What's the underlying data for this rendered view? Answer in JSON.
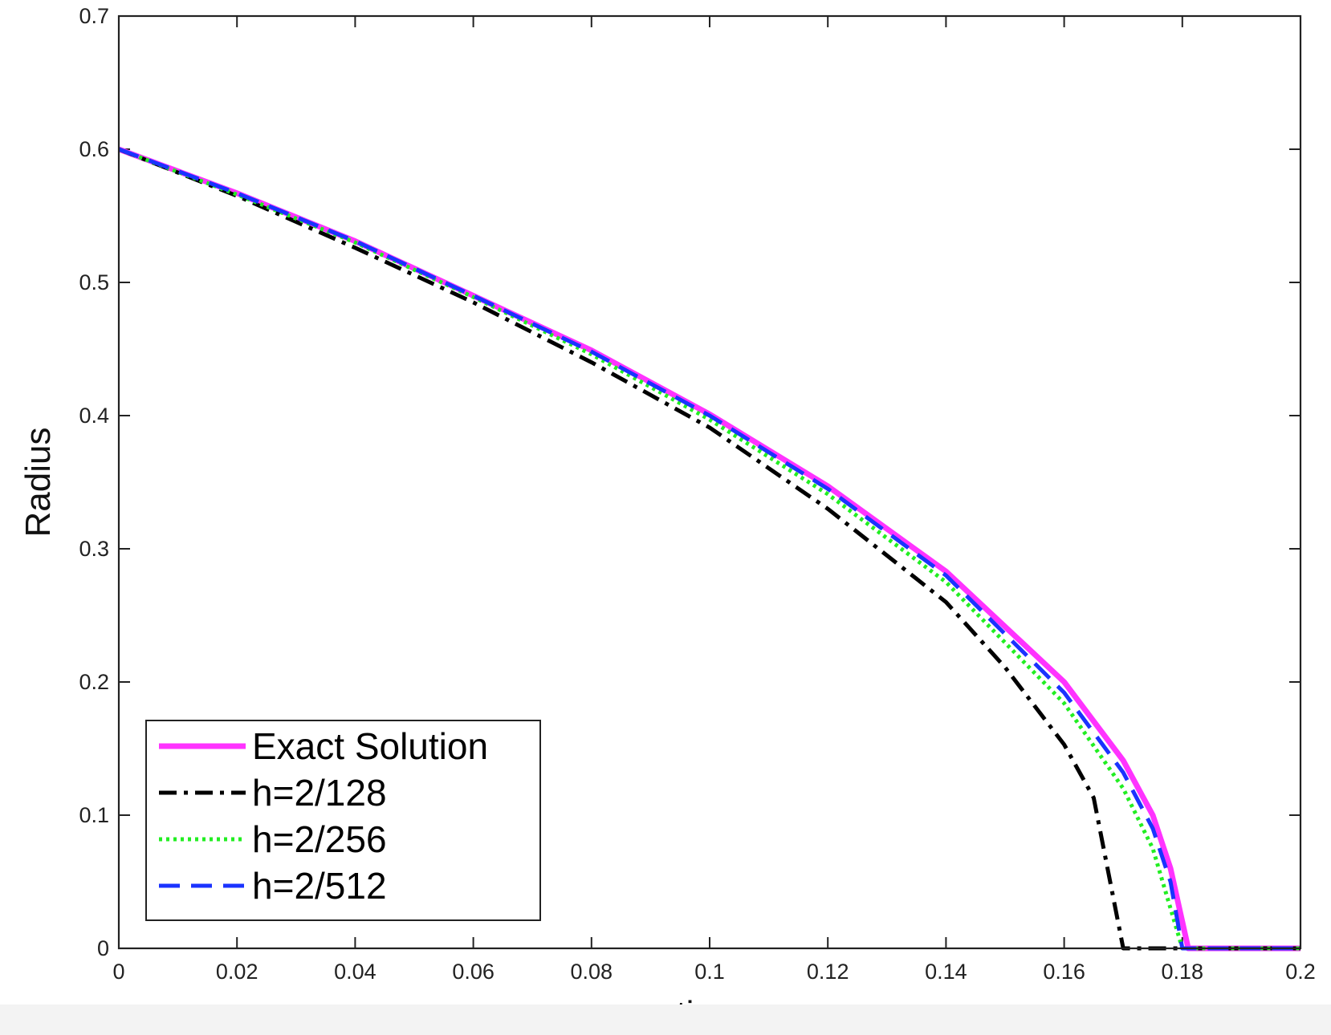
{
  "chart_data": {
    "type": "line",
    "xlabel": "time",
    "ylabel": "Radius",
    "xlim": [
      0,
      0.2
    ],
    "ylim": [
      0,
      0.7
    ],
    "xticks": [
      0,
      0.02,
      0.04,
      0.06,
      0.08,
      0.1,
      0.12,
      0.14,
      0.16,
      0.18,
      0.2
    ],
    "xtick_labels": [
      "0",
      "0.02",
      "0.04",
      "0.06",
      "0.08",
      "0.1",
      "0.12",
      "0.14",
      "0.16",
      "0.18",
      "0.2"
    ],
    "yticks": [
      0,
      0.1,
      0.2,
      0.3,
      0.4,
      0.5,
      0.6,
      0.7
    ],
    "ytick_labels": [
      "0",
      "0.1",
      "0.2",
      "0.3",
      "0.4",
      "0.5",
      "0.6",
      "0.7"
    ],
    "grid": false,
    "legend_position": "bottom-left",
    "series": [
      {
        "name": "Exact Solution",
        "color": "#ff33ff",
        "style": "solid",
        "x": [
          0,
          0.02,
          0.04,
          0.06,
          0.08,
          0.1,
          0.12,
          0.14,
          0.16,
          0.17,
          0.175,
          0.178,
          0.18,
          0.181,
          0.19,
          0.2
        ],
        "y": [
          0.6,
          0.567,
          0.531,
          0.49,
          0.449,
          0.401,
          0.347,
          0.283,
          0.2,
          0.141,
          0.1,
          0.06,
          0.02,
          0,
          0,
          0
        ]
      },
      {
        "name": "h=2/128",
        "color": "#000000",
        "style": "dashdot",
        "x": [
          0,
          0.02,
          0.04,
          0.06,
          0.08,
          0.1,
          0.12,
          0.14,
          0.15,
          0.16,
          0.165,
          0.17,
          0.18,
          0.19,
          0.2
        ],
        "y": [
          0.6,
          0.565,
          0.526,
          0.485,
          0.44,
          0.391,
          0.33,
          0.26,
          0.211,
          0.153,
          0.113,
          0,
          0,
          0,
          0
        ]
      },
      {
        "name": "h=2/256",
        "color": "#22ee22",
        "style": "dotted",
        "x": [
          0,
          0.02,
          0.04,
          0.06,
          0.08,
          0.1,
          0.12,
          0.14,
          0.16,
          0.17,
          0.175,
          0.18,
          0.19,
          0.2
        ],
        "y": [
          0.6,
          0.566,
          0.53,
          0.489,
          0.446,
          0.397,
          0.341,
          0.275,
          0.184,
          0.12,
          0.075,
          0,
          0,
          0
        ]
      },
      {
        "name": "h=2/512",
        "color": "#1a33ff",
        "style": "dashed",
        "x": [
          0,
          0.02,
          0.04,
          0.06,
          0.08,
          0.1,
          0.12,
          0.14,
          0.16,
          0.17,
          0.175,
          0.178,
          0.18,
          0.19,
          0.2
        ],
        "y": [
          0.6,
          0.567,
          0.531,
          0.49,
          0.448,
          0.4,
          0.345,
          0.28,
          0.192,
          0.132,
          0.09,
          0.05,
          0,
          0,
          0
        ]
      }
    ]
  }
}
